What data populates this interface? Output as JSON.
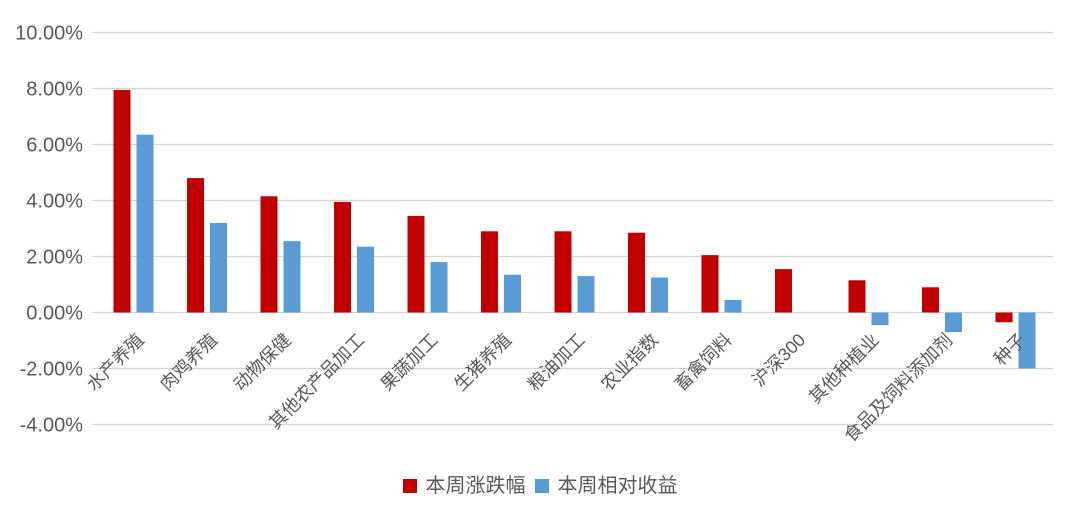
{
  "chart_data": {
    "type": "bar",
    "title": "",
    "categories": [
      "水产养殖",
      "肉鸡养殖",
      "动物保健",
      "其他农产品加工",
      "果蔬加工",
      "生猪养殖",
      "粮油加工",
      "农业指数",
      "畜禽饲料",
      "沪深300",
      "其他种植业",
      "食品及饲料添加剂",
      "种子"
    ],
    "series": [
      {
        "name": "本周涨跌幅",
        "color": "#c00000",
        "values": [
          7.95,
          4.8,
          4.15,
          3.95,
          3.45,
          2.9,
          2.9,
          2.85,
          2.05,
          1.55,
          1.15,
          0.9,
          -0.35
        ]
      },
      {
        "name": "本周相对收益",
        "color": "#5b9bd5",
        "values": [
          6.35,
          3.2,
          2.55,
          2.35,
          1.8,
          1.35,
          1.3,
          1.25,
          0.45,
          0.0,
          -0.45,
          -0.7,
          -2.0
        ]
      }
    ],
    "y_axis": {
      "tick_labels": [
        "10.00%",
        "8.00%",
        "6.00%",
        "4.00%",
        "2.00%",
        "0.00%",
        "-2.00%",
        "-4.00%"
      ],
      "tick_values": [
        10,
        8,
        6,
        4,
        2,
        0,
        -2,
        -4
      ],
      "ylim": [
        -4,
        10
      ],
      "unit": "percent"
    },
    "xlabel": "",
    "ylabel": "",
    "grid": true,
    "legend_position": "bottom",
    "category_label_rotation_deg": -45
  },
  "colors": {
    "gridline": "#d4d4d4",
    "axis_text": "#595959",
    "background": "#ffffff"
  }
}
